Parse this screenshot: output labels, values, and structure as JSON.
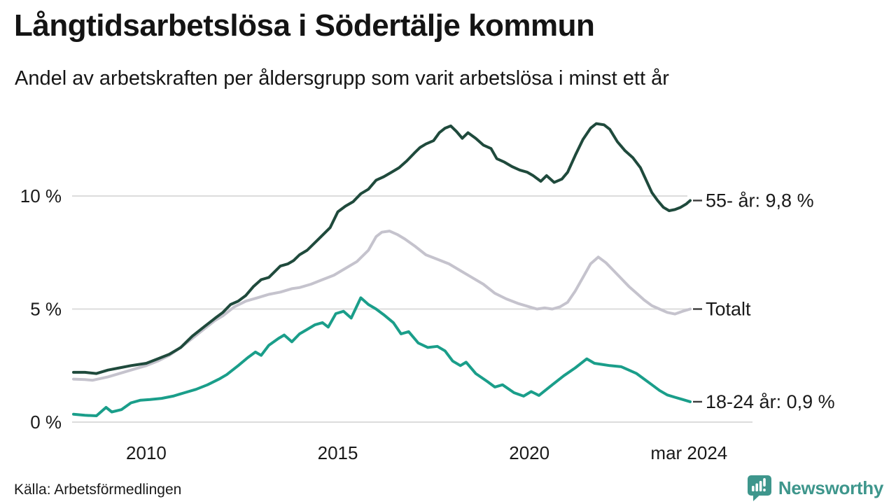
{
  "header": {
    "title": "Långtidsarbetslösa i Södertälje kommun",
    "subtitle": "Andel av arbetskraften per åldersgrupp som varit arbetslösa i minst ett år"
  },
  "footer": {
    "source": "Källa: Arbetsförmedlingen",
    "brand": "Newsworthy"
  },
  "colors": {
    "series_55": "#1f4a3c",
    "series_total": "#c5c3cd",
    "series_1824": "#1a9e8a",
    "gridline": "#dcdcdc",
    "tick_dash": "#3a3a3a",
    "text": "#1a1a1a",
    "brand_teal": "#3e968c"
  },
  "chart_data": {
    "type": "line",
    "title": "Långtidsarbetslösa i Södertälje kommun",
    "xlabel": "",
    "ylabel": "",
    "unit": "%",
    "grid": true,
    "legend_position": "right-end-labels",
    "x_range": [
      2008.1,
      2024.2
    ],
    "y_range": [
      0,
      13.6
    ],
    "x_axis": {
      "ticks": [
        {
          "year": 2010,
          "label": "2010"
        },
        {
          "year": 2015,
          "label": "2015"
        },
        {
          "year": 2020,
          "label": "2020"
        },
        {
          "year": 2024.17,
          "label": "mar 2024"
        }
      ]
    },
    "y_axis": {
      "ticks": [
        {
          "value": 0,
          "label": "0 %"
        },
        {
          "value": 5,
          "label": "5 %"
        },
        {
          "value": 10,
          "label": "10 %"
        }
      ]
    },
    "series": [
      {
        "name": "Totalt",
        "end_label": "Totalt",
        "end_value_label": "5,0 %",
        "color": "#c5c3cd",
        "points": [
          [
            2008.1,
            1.9
          ],
          [
            2008.4,
            1.88
          ],
          [
            2008.6,
            1.85
          ],
          [
            2009.0,
            2.0
          ],
          [
            2009.3,
            2.15
          ],
          [
            2009.6,
            2.3
          ],
          [
            2010.0,
            2.5
          ],
          [
            2010.3,
            2.7
          ],
          [
            2010.6,
            2.95
          ],
          [
            2010.9,
            3.3
          ],
          [
            2011.2,
            3.7
          ],
          [
            2011.5,
            4.1
          ],
          [
            2011.8,
            4.5
          ],
          [
            2012.0,
            4.7
          ],
          [
            2012.3,
            5.1
          ],
          [
            2012.6,
            5.35
          ],
          [
            2012.9,
            5.5
          ],
          [
            2013.2,
            5.65
          ],
          [
            2013.5,
            5.75
          ],
          [
            2013.8,
            5.9
          ],
          [
            2014.0,
            5.95
          ],
          [
            2014.3,
            6.1
          ],
          [
            2014.6,
            6.3
          ],
          [
            2014.9,
            6.5
          ],
          [
            2015.2,
            6.8
          ],
          [
            2015.5,
            7.1
          ],
          [
            2015.8,
            7.6
          ],
          [
            2016.0,
            8.2
          ],
          [
            2016.15,
            8.4
          ],
          [
            2016.35,
            8.45
          ],
          [
            2016.55,
            8.3
          ],
          [
            2016.75,
            8.1
          ],
          [
            2017.0,
            7.8
          ],
          [
            2017.3,
            7.4
          ],
          [
            2017.6,
            7.2
          ],
          [
            2017.9,
            7.0
          ],
          [
            2018.2,
            6.7
          ],
          [
            2018.5,
            6.4
          ],
          [
            2018.8,
            6.1
          ],
          [
            2019.1,
            5.7
          ],
          [
            2019.4,
            5.45
          ],
          [
            2019.7,
            5.25
          ],
          [
            2020.0,
            5.1
          ],
          [
            2020.2,
            5.0
          ],
          [
            2020.4,
            5.05
          ],
          [
            2020.6,
            5.0
          ],
          [
            2020.8,
            5.1
          ],
          [
            2021.0,
            5.3
          ],
          [
            2021.2,
            5.8
          ],
          [
            2021.4,
            6.4
          ],
          [
            2021.6,
            7.0
          ],
          [
            2021.8,
            7.3
          ],
          [
            2022.0,
            7.05
          ],
          [
            2022.2,
            6.7
          ],
          [
            2022.4,
            6.35
          ],
          [
            2022.6,
            6.0
          ],
          [
            2022.8,
            5.7
          ],
          [
            2023.0,
            5.4
          ],
          [
            2023.2,
            5.15
          ],
          [
            2023.4,
            5.0
          ],
          [
            2023.6,
            4.85
          ],
          [
            2023.8,
            4.78
          ],
          [
            2024.0,
            4.9
          ],
          [
            2024.2,
            5.0
          ]
        ]
      },
      {
        "name": "18-24 år",
        "end_label": "18-24 år: 0,9 %",
        "end_value_label": "0,9 %",
        "color": "#1a9e8a",
        "points": [
          [
            2008.1,
            0.35
          ],
          [
            2008.4,
            0.3
          ],
          [
            2008.7,
            0.28
          ],
          [
            2008.95,
            0.65
          ],
          [
            2009.1,
            0.45
          ],
          [
            2009.35,
            0.55
          ],
          [
            2009.6,
            0.85
          ],
          [
            2009.85,
            0.97
          ],
          [
            2010.1,
            1.0
          ],
          [
            2010.4,
            1.05
          ],
          [
            2010.7,
            1.15
          ],
          [
            2011.0,
            1.3
          ],
          [
            2011.3,
            1.45
          ],
          [
            2011.6,
            1.65
          ],
          [
            2011.9,
            1.9
          ],
          [
            2012.1,
            2.1
          ],
          [
            2012.4,
            2.5
          ],
          [
            2012.65,
            2.85
          ],
          [
            2012.85,
            3.1
          ],
          [
            2013.0,
            2.95
          ],
          [
            2013.2,
            3.4
          ],
          [
            2013.45,
            3.7
          ],
          [
            2013.6,
            3.85
          ],
          [
            2013.8,
            3.55
          ],
          [
            2014.0,
            3.9
          ],
          [
            2014.2,
            4.1
          ],
          [
            2014.4,
            4.3
          ],
          [
            2014.6,
            4.4
          ],
          [
            2014.75,
            4.2
          ],
          [
            2014.95,
            4.8
          ],
          [
            2015.15,
            4.9
          ],
          [
            2015.35,
            4.6
          ],
          [
            2015.6,
            5.5
          ],
          [
            2015.8,
            5.2
          ],
          [
            2016.0,
            5.0
          ],
          [
            2016.2,
            4.75
          ],
          [
            2016.45,
            4.4
          ],
          [
            2016.65,
            3.9
          ],
          [
            2016.85,
            4.0
          ],
          [
            2017.1,
            3.5
          ],
          [
            2017.35,
            3.3
          ],
          [
            2017.6,
            3.35
          ],
          [
            2017.8,
            3.15
          ],
          [
            2018.0,
            2.7
          ],
          [
            2018.2,
            2.5
          ],
          [
            2018.35,
            2.65
          ],
          [
            2018.6,
            2.15
          ],
          [
            2018.9,
            1.8
          ],
          [
            2019.1,
            1.55
          ],
          [
            2019.3,
            1.65
          ],
          [
            2019.6,
            1.3
          ],
          [
            2019.85,
            1.15
          ],
          [
            2020.05,
            1.35
          ],
          [
            2020.25,
            1.18
          ],
          [
            2020.6,
            1.65
          ],
          [
            2020.9,
            2.05
          ],
          [
            2021.2,
            2.4
          ],
          [
            2021.5,
            2.8
          ],
          [
            2021.7,
            2.6
          ],
          [
            2021.9,
            2.55
          ],
          [
            2022.1,
            2.5
          ],
          [
            2022.4,
            2.45
          ],
          [
            2022.6,
            2.3
          ],
          [
            2022.8,
            2.15
          ],
          [
            2023.0,
            1.9
          ],
          [
            2023.2,
            1.65
          ],
          [
            2023.4,
            1.4
          ],
          [
            2023.6,
            1.2
          ],
          [
            2023.8,
            1.1
          ],
          [
            2024.0,
            1.0
          ],
          [
            2024.2,
            0.9
          ]
        ]
      },
      {
        "name": "55- år",
        "end_label": "55- år: 9,8 %",
        "end_value_label": "9,8 %",
        "color": "#1f4a3c",
        "points": [
          [
            2008.1,
            2.2
          ],
          [
            2008.4,
            2.2
          ],
          [
            2008.7,
            2.15
          ],
          [
            2009.0,
            2.3
          ],
          [
            2009.3,
            2.4
          ],
          [
            2009.6,
            2.5
          ],
          [
            2010.0,
            2.6
          ],
          [
            2010.3,
            2.8
          ],
          [
            2010.6,
            3.0
          ],
          [
            2010.9,
            3.3
          ],
          [
            2011.2,
            3.8
          ],
          [
            2011.5,
            4.2
          ],
          [
            2011.8,
            4.6
          ],
          [
            2012.0,
            4.85
          ],
          [
            2012.2,
            5.2
          ],
          [
            2012.4,
            5.35
          ],
          [
            2012.6,
            5.6
          ],
          [
            2012.8,
            6.0
          ],
          [
            2013.0,
            6.3
          ],
          [
            2013.2,
            6.4
          ],
          [
            2013.5,
            6.9
          ],
          [
            2013.7,
            7.0
          ],
          [
            2013.85,
            7.15
          ],
          [
            2014.0,
            7.4
          ],
          [
            2014.2,
            7.6
          ],
          [
            2014.5,
            8.1
          ],
          [
            2014.8,
            8.6
          ],
          [
            2015.0,
            9.3
          ],
          [
            2015.2,
            9.55
          ],
          [
            2015.4,
            9.75
          ],
          [
            2015.6,
            10.1
          ],
          [
            2015.8,
            10.3
          ],
          [
            2016.0,
            10.7
          ],
          [
            2016.2,
            10.85
          ],
          [
            2016.4,
            11.05
          ],
          [
            2016.6,
            11.25
          ],
          [
            2016.8,
            11.55
          ],
          [
            2017.0,
            11.9
          ],
          [
            2017.15,
            12.15
          ],
          [
            2017.3,
            12.3
          ],
          [
            2017.5,
            12.45
          ],
          [
            2017.65,
            12.8
          ],
          [
            2017.8,
            13.0
          ],
          [
            2017.95,
            13.1
          ],
          [
            2018.1,
            12.85
          ],
          [
            2018.25,
            12.55
          ],
          [
            2018.4,
            12.8
          ],
          [
            2018.6,
            12.55
          ],
          [
            2018.8,
            12.25
          ],
          [
            2019.0,
            12.1
          ],
          [
            2019.15,
            11.65
          ],
          [
            2019.35,
            11.5
          ],
          [
            2019.55,
            11.3
          ],
          [
            2019.75,
            11.15
          ],
          [
            2019.95,
            11.05
          ],
          [
            2020.1,
            10.9
          ],
          [
            2020.3,
            10.65
          ],
          [
            2020.45,
            10.9
          ],
          [
            2020.65,
            10.6
          ],
          [
            2020.85,
            10.75
          ],
          [
            2021.0,
            11.05
          ],
          [
            2021.2,
            11.8
          ],
          [
            2021.4,
            12.5
          ],
          [
            2021.6,
            13.0
          ],
          [
            2021.75,
            13.2
          ],
          [
            2021.95,
            13.15
          ],
          [
            2022.1,
            12.95
          ],
          [
            2022.3,
            12.4
          ],
          [
            2022.5,
            12.0
          ],
          [
            2022.7,
            11.7
          ],
          [
            2022.9,
            11.25
          ],
          [
            2023.05,
            10.7
          ],
          [
            2023.2,
            10.15
          ],
          [
            2023.35,
            9.8
          ],
          [
            2023.5,
            9.5
          ],
          [
            2023.65,
            9.35
          ],
          [
            2023.8,
            9.4
          ],
          [
            2023.95,
            9.5
          ],
          [
            2024.1,
            9.65
          ],
          [
            2024.2,
            9.8
          ]
        ]
      }
    ]
  }
}
